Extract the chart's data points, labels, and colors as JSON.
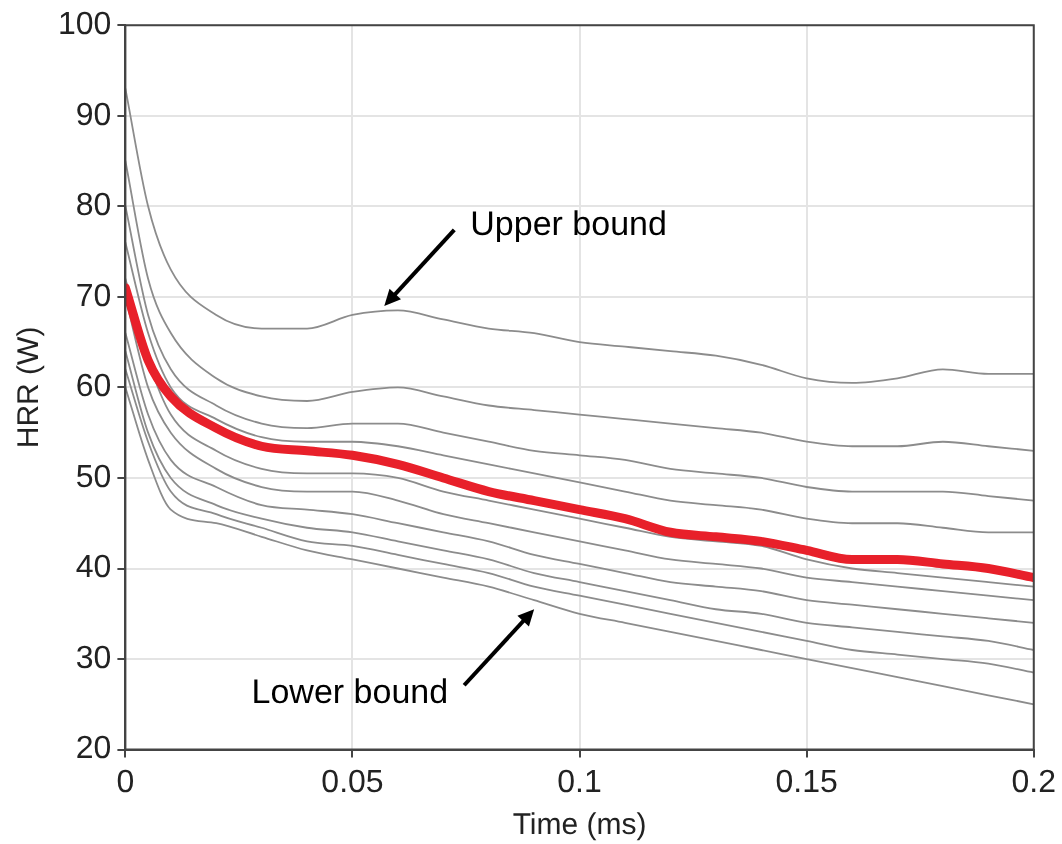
{
  "chart_data": {
    "type": "line",
    "xlabel": "Time (ms)",
    "ylabel": "HRR (W)",
    "x": [
      0,
      0.005,
      0.01,
      0.02,
      0.03,
      0.04,
      0.05,
      0.06,
      0.07,
      0.08,
      0.09,
      0.1,
      0.11,
      0.12,
      0.13,
      0.14,
      0.15,
      0.16,
      0.17,
      0.18,
      0.19,
      0.2
    ],
    "xlim": [
      0,
      0.2
    ],
    "xticks": [
      0,
      0.05,
      0.1,
      0.15,
      0.2
    ],
    "ylim": [
      20,
      100
    ],
    "yticks": [
      20,
      30,
      40,
      50,
      60,
      70,
      80,
      90,
      100
    ],
    "grid": true,
    "legend": false,
    "marker": "none",
    "line_style": "solid",
    "series": [
      {
        "color": "#8c8c8c",
        "values": [
          93,
          80,
          73,
          68,
          66.5,
          66.5,
          68,
          68.5,
          67.5,
          66.5,
          66,
          65,
          64.5,
          64,
          63.5,
          62.5,
          61,
          60.5,
          61,
          62,
          61.5,
          61.5
        ]
      },
      {
        "color": "#8c8c8c",
        "values": [
          85,
          72,
          66,
          61,
          59,
          58.5,
          59.5,
          60,
          59,
          58,
          57.5,
          57,
          56.5,
          56,
          55.5,
          55,
          54,
          53.5,
          53.5,
          54,
          53.5,
          53
        ]
      },
      {
        "color": "#8c8c8c",
        "values": [
          80,
          68,
          62,
          58,
          56,
          55.5,
          56,
          56,
          55,
          54,
          53,
          52.5,
          52,
          51,
          50.5,
          50,
          49,
          48.5,
          48.5,
          48.5,
          48,
          47.5
        ]
      },
      {
        "color": "#8c8c8c",
        "values": [
          76,
          66,
          60,
          56.5,
          54.5,
          54,
          54,
          53.5,
          52.5,
          51.5,
          50.5,
          49.5,
          48.5,
          47.5,
          47,
          46.5,
          45.5,
          45,
          45,
          44.5,
          44,
          44
        ]
      },
      {
        "color": "#8c8c8c",
        "values": [
          72,
          63,
          57,
          53,
          51,
          50.5,
          50.5,
          50,
          48.5,
          47.5,
          46.5,
          45.5,
          44.5,
          43.5,
          43,
          42.5,
          41,
          40,
          39.5,
          39,
          38.5,
          38
        ]
      },
      {
        "color": "#8c8c8c",
        "values": [
          70,
          60,
          55,
          51,
          49,
          48.5,
          48.5,
          47.5,
          46,
          45,
          44,
          43,
          42,
          41,
          40.5,
          40,
          39,
          38.5,
          38,
          37.5,
          37,
          36.5
        ]
      },
      {
        "color": "#8c8c8c",
        "values": [
          66,
          57,
          52,
          49,
          47,
          46.5,
          46,
          45,
          44,
          43,
          41.5,
          40.5,
          39.5,
          38.5,
          38,
          37.5,
          36.5,
          36,
          35.5,
          35,
          34.5,
          34
        ]
      },
      {
        "color": "#8c8c8c",
        "values": [
          64,
          55,
          50,
          47,
          45.5,
          44.5,
          44,
          43,
          42,
          41,
          39.5,
          38.5,
          37.5,
          36.5,
          35.5,
          35,
          34,
          33.5,
          33,
          32.5,
          32,
          31
        ]
      },
      {
        "color": "#8c8c8c",
        "values": [
          62,
          54,
          48.5,
          46,
          44.5,
          43,
          42.5,
          41.5,
          40.5,
          39.5,
          38,
          37,
          36,
          35,
          34,
          33,
          32,
          31,
          30.5,
          30,
          29.5,
          28.5
        ]
      },
      {
        "color": "#8c8c8c",
        "values": [
          60,
          52,
          46.5,
          45,
          43.5,
          42,
          41,
          40,
          39,
          38,
          36.5,
          35,
          34,
          33,
          32,
          31,
          30,
          29,
          28,
          27,
          26,
          25
        ]
      },
      {
        "color": "#e8202a",
        "values": [
          71,
          63,
          59,
          55.5,
          53.5,
          53,
          52.5,
          51.5,
          50,
          48.5,
          47.5,
          46.5,
          45.5,
          44,
          43.5,
          43,
          42,
          41,
          41,
          40.5,
          40,
          39
        ]
      }
    ],
    "annotations": [
      {
        "text": "Upper bound",
        "x": 0.057,
        "y": 69
      },
      {
        "text": "Lower bound",
        "x": 0.09,
        "y": 35.5
      }
    ]
  }
}
